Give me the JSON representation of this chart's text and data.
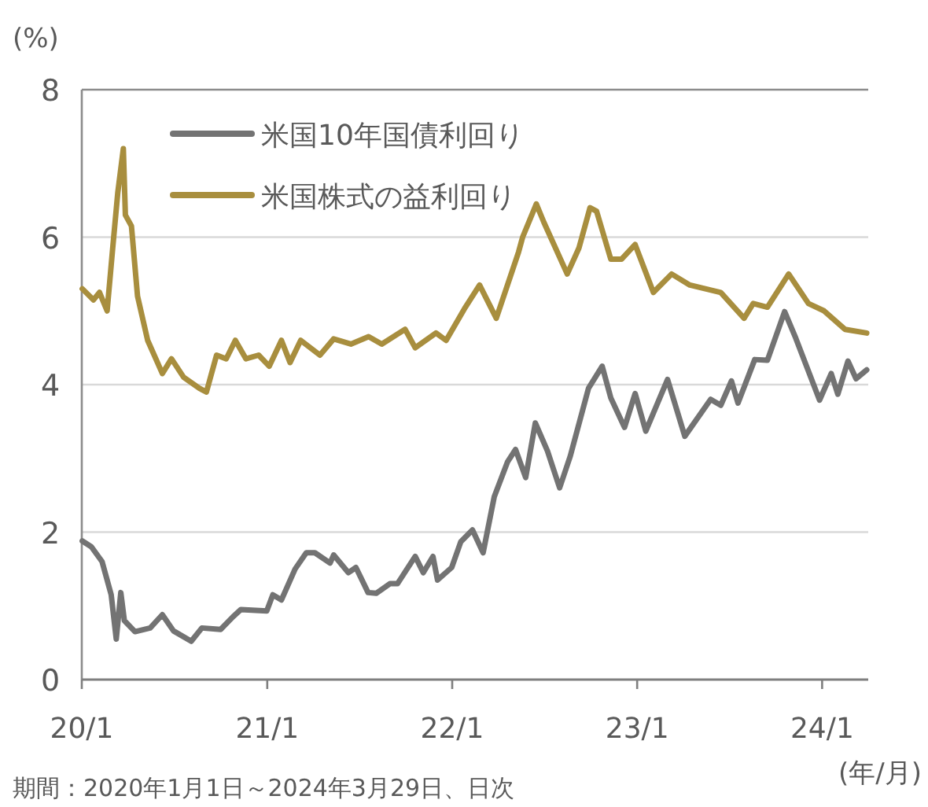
{
  "chart_data": {
    "type": "line",
    "ylabel": "(%)",
    "xlabel": "(年/月)",
    "annotations": [
      "期間：2020年1月1日～2024年3月29日、日次"
    ],
    "xlim": [
      "2020-01-01",
      "2024-04-01"
    ],
    "ylim": [
      0,
      8
    ],
    "yticks": [
      0,
      2,
      4,
      6,
      8
    ],
    "xticks": [
      {
        "value": "2020-01-01",
        "label": "20/1"
      },
      {
        "value": "2021-01-01",
        "label": "21/1"
      },
      {
        "value": "2022-01-01",
        "label": "22/1"
      },
      {
        "value": "2023-01-01",
        "label": "23/1"
      },
      {
        "value": "2024-01-01",
        "label": "24/1"
      }
    ],
    "grid": "y",
    "legend": "top left",
    "line_style": "solid",
    "series": [
      {
        "name": "米国10年国債利回り",
        "color": "#737373",
        "x": [
          "2020-01-02",
          "2020-01-20",
          "2020-02-10",
          "2020-02-28",
          "2020-03-09",
          "2020-03-18",
          "2020-03-25",
          "2020-04-15",
          "2020-05-15",
          "2020-06-08",
          "2020-06-30",
          "2020-08-04",
          "2020-08-25",
          "2020-10-01",
          "2020-10-25",
          "2020-11-10",
          "2020-12-31",
          "2021-01-12",
          "2021-01-29",
          "2021-02-25",
          "2021-03-19",
          "2021-04-05",
          "2021-05-05",
          "2021-05-12",
          "2021-06-10",
          "2021-06-25",
          "2021-07-19",
          "2021-08-04",
          "2021-08-31",
          "2021-09-15",
          "2021-10-20",
          "2021-11-05",
          "2021-11-24",
          "2021-12-03",
          "2021-12-31",
          "2022-01-18",
          "2022-02-10",
          "2022-03-03",
          "2022-03-25",
          "2022-04-20",
          "2022-05-06",
          "2022-05-26",
          "2022-06-14",
          "2022-07-08",
          "2022-08-01",
          "2022-08-22",
          "2022-09-27",
          "2022-10-24",
          "2022-11-10",
          "2022-12-07",
          "2022-12-28",
          "2023-01-18",
          "2023-03-02",
          "2023-04-05",
          "2023-05-26",
          "2023-06-15",
          "2023-07-06",
          "2023-07-19",
          "2023-08-21",
          "2023-09-15",
          "2023-10-19",
          "2023-11-10",
          "2023-12-27",
          "2024-01-19",
          "2024-02-01",
          "2024-02-21",
          "2024-03-08",
          "2024-03-29"
        ],
        "values": [
          1.88,
          1.8,
          1.6,
          1.15,
          0.55,
          1.18,
          0.8,
          0.65,
          0.7,
          0.88,
          0.66,
          0.52,
          0.7,
          0.68,
          0.85,
          0.95,
          0.93,
          1.15,
          1.08,
          1.5,
          1.72,
          1.72,
          1.58,
          1.69,
          1.45,
          1.52,
          1.18,
          1.17,
          1.3,
          1.3,
          1.67,
          1.45,
          1.67,
          1.35,
          1.52,
          1.87,
          2.03,
          1.72,
          2.48,
          2.95,
          3.12,
          2.74,
          3.48,
          3.1,
          2.6,
          3.03,
          3.95,
          4.25,
          3.82,
          3.42,
          3.88,
          3.37,
          4.07,
          3.3,
          3.8,
          3.72,
          4.05,
          3.75,
          4.34,
          4.33,
          4.99,
          4.63,
          3.79,
          4.15,
          3.87,
          4.32,
          4.08,
          4.2
        ]
      },
      {
        "name": "米国株式の益利回り",
        "color": "#a88e3e",
        "x": [
          "2020-01-02",
          "2020-01-24",
          "2020-02-05",
          "2020-02-20",
          "2020-03-02",
          "2020-03-12",
          "2020-03-23",
          "2020-03-27",
          "2020-04-08",
          "2020-04-20",
          "2020-05-10",
          "2020-06-08",
          "2020-06-26",
          "2020-07-20",
          "2020-08-20",
          "2020-09-03",
          "2020-09-23",
          "2020-10-12",
          "2020-10-30",
          "2020-11-20",
          "2020-12-15",
          "2021-01-05",
          "2021-01-29",
          "2021-02-15",
          "2021-03-08",
          "2021-04-15",
          "2021-05-12",
          "2021-06-15",
          "2021-07-20",
          "2021-08-15",
          "2021-09-30",
          "2021-10-20",
          "2021-11-30",
          "2021-12-20",
          "2022-01-27",
          "2022-02-24",
          "2022-03-29",
          "2022-05-12",
          "2022-05-20",
          "2022-06-16",
          "2022-07-01",
          "2022-08-16",
          "2022-09-08",
          "2022-09-30",
          "2022-10-13",
          "2022-11-10",
          "2022-12-01",
          "2022-12-28",
          "2023-02-02",
          "2023-03-10",
          "2023-04-15",
          "2023-06-15",
          "2023-07-31",
          "2023-08-18",
          "2023-09-15",
          "2023-10-27",
          "2023-12-05",
          "2024-01-05",
          "2024-02-15",
          "2024-03-29"
        ],
        "values": [
          5.3,
          5.15,
          5.25,
          5.0,
          5.85,
          6.6,
          7.2,
          6.3,
          6.15,
          5.2,
          4.6,
          4.15,
          4.35,
          4.1,
          3.95,
          3.9,
          4.4,
          4.35,
          4.6,
          4.35,
          4.4,
          4.25,
          4.6,
          4.3,
          4.6,
          4.4,
          4.62,
          4.55,
          4.65,
          4.55,
          4.75,
          4.5,
          4.7,
          4.6,
          5.05,
          5.35,
          4.9,
          5.8,
          6.0,
          6.45,
          6.2,
          5.5,
          5.85,
          6.4,
          6.35,
          5.7,
          5.7,
          5.9,
          5.25,
          5.5,
          5.35,
          5.25,
          4.9,
          5.1,
          5.05,
          5.5,
          5.1,
          5.0,
          4.75,
          4.7
        ]
      }
    ]
  }
}
